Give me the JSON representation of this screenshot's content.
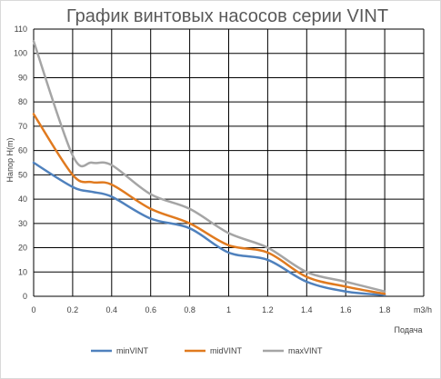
{
  "chart_data": {
    "type": "line",
    "title": "График винтовых насосов серии VINT",
    "ylabel": "Напор  H(m)",
    "xlabel": "Подача",
    "x_unit": "m3/h",
    "xlim": [
      0,
      1.8
    ],
    "ylim": [
      0,
      110
    ],
    "x_ticks": [
      "0",
      "0.2",
      "0.4",
      "0.6",
      "0.8",
      "1",
      "1.2",
      "1.4",
      "1.6",
      "1.8"
    ],
    "y_ticks": [
      "0",
      "10",
      "20",
      "30",
      "40",
      "50",
      "60",
      "70",
      "80",
      "90",
      "100",
      "110"
    ],
    "grid": true,
    "legend_position": "bottom",
    "x": [
      0,
      0.2,
      0.3,
      0.4,
      0.6,
      0.8,
      1.0,
      1.2,
      1.4,
      1.6,
      1.8
    ],
    "series": [
      {
        "name": "minVINT",
        "color": "#4f81bd",
        "values": [
          55,
          45,
          43,
          41,
          32,
          28,
          18,
          15,
          6,
          2,
          0.5
        ]
      },
      {
        "name": "midVINT",
        "color": "#e07a1f",
        "values": [
          75,
          50,
          47,
          46,
          36,
          30,
          21,
          18,
          8,
          4,
          1
        ]
      },
      {
        "name": "maxVINT",
        "color": "#a5a5a5",
        "values": [
          105,
          58,
          55,
          54,
          42,
          36,
          26,
          20,
          10,
          6,
          2
        ]
      }
    ]
  }
}
